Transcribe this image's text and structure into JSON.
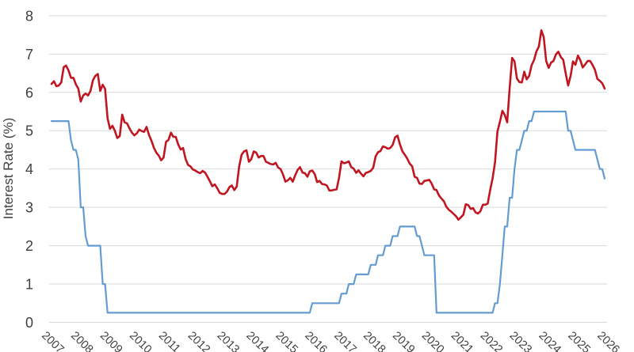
{
  "chart_data": {
    "type": "line",
    "title": "",
    "ylabel": "Interest Rate (%)",
    "xlabel": "",
    "ylim": [
      0,
      8
    ],
    "y_ticks": [
      0,
      1,
      2,
      3,
      4,
      5,
      6,
      7,
      8
    ],
    "x_tick_labels": [
      "2007",
      "2008",
      "2009",
      "2010",
      "2011",
      "2012",
      "2013",
      "2014",
      "2015",
      "2016",
      "2017",
      "2018",
      "2019",
      "2020",
      "2021",
      "2022",
      "2023",
      "2024",
      "2025",
      "2026"
    ],
    "x_frequency": "monthly",
    "x_range": "Jan 2007 - Dec 2025",
    "grid": "horizontal-light-gray",
    "legend_position": "none",
    "colors": {
      "grid": "#d9d9d9",
      "text": "#3f3f3f",
      "red_line": "#c01622",
      "blue_line": "#649cd2"
    },
    "series": [
      {
        "name": "red-line",
        "color": "#c01622",
        "stroke_width": 2.6,
        "values": [
          6.22,
          6.29,
          6.16,
          6.18,
          6.26,
          6.66,
          6.7,
          6.57,
          6.38,
          6.38,
          6.21,
          6.1,
          5.76,
          5.92,
          5.97,
          5.92,
          6.04,
          6.32,
          6.43,
          6.48,
          6.04,
          6.2,
          6.09,
          5.33,
          5.05,
          5.13,
          5.0,
          4.81,
          4.86,
          5.42,
          5.22,
          5.19,
          5.06,
          4.95,
          4.88,
          4.93,
          5.03,
          4.99,
          4.97,
          5.1,
          4.89,
          4.74,
          4.56,
          4.43,
          4.35,
          4.23,
          4.3,
          4.71,
          4.76,
          4.95,
          4.84,
          4.84,
          4.64,
          4.51,
          4.55,
          4.27,
          4.11,
          4.07,
          3.99,
          3.96,
          3.92,
          3.89,
          3.95,
          3.91,
          3.8,
          3.68,
          3.55,
          3.6,
          3.5,
          3.38,
          3.35,
          3.35,
          3.41,
          3.53,
          3.57,
          3.45,
          3.54,
          4.07,
          4.37,
          4.46,
          4.49,
          4.19,
          4.26,
          4.46,
          4.43,
          4.3,
          4.34,
          4.34,
          4.19,
          4.16,
          4.13,
          4.12,
          4.16,
          4.04,
          4.0,
          3.86,
          3.67,
          3.71,
          3.77,
          3.67,
          3.84,
          3.98,
          4.05,
          3.91,
          3.89,
          3.8,
          3.94,
          3.96,
          3.87,
          3.66,
          3.69,
          3.61,
          3.6,
          3.57,
          3.44,
          3.44,
          3.46,
          3.47,
          3.77,
          4.2,
          4.15,
          4.17,
          4.2,
          4.05,
          4.01,
          3.9,
          3.97,
          3.88,
          3.81,
          3.9,
          3.92,
          3.95,
          4.03,
          4.33,
          4.44,
          4.47,
          4.59,
          4.57,
          4.53,
          4.55,
          4.63,
          4.83,
          4.87,
          4.64,
          4.46,
          4.37,
          4.27,
          4.14,
          4.07,
          3.8,
          3.77,
          3.62,
          3.61,
          3.69,
          3.7,
          3.72,
          3.62,
          3.47,
          3.45,
          3.31,
          3.23,
          3.16,
          3.02,
          2.94,
          2.89,
          2.83,
          2.77,
          2.68,
          2.74,
          2.81,
          3.08,
          3.06,
          2.96,
          2.98,
          2.87,
          2.84,
          2.9,
          3.07,
          3.07,
          3.1,
          3.45,
          3.76,
          4.17,
          4.98,
          5.23,
          5.52,
          5.41,
          5.22,
          6.11,
          6.9,
          6.81,
          6.36,
          6.27,
          6.26,
          6.54,
          6.34,
          6.43,
          6.71,
          6.84,
          7.07,
          7.2,
          7.62,
          7.44,
          6.82,
          6.64,
          6.78,
          6.82,
          6.99,
          7.06,
          6.92,
          6.85,
          6.5,
          6.18,
          6.43,
          6.81,
          6.72,
          6.96,
          6.84,
          6.65,
          6.73,
          6.82,
          6.82,
          6.72,
          6.59,
          6.35,
          6.3,
          6.24,
          6.1
        ]
      },
      {
        "name": "blue-line",
        "color": "#649cd2",
        "stroke_width": 2.2,
        "values": [
          5.25,
          5.25,
          5.25,
          5.25,
          5.25,
          5.25,
          5.25,
          5.25,
          4.75,
          4.5,
          4.5,
          4.25,
          3.0,
          3.0,
          2.25,
          2.0,
          2.0,
          2.0,
          2.0,
          2.0,
          2.0,
          1.0,
          1.0,
          0.25,
          0.25,
          0.25,
          0.25,
          0.25,
          0.25,
          0.25,
          0.25,
          0.25,
          0.25,
          0.25,
          0.25,
          0.25,
          0.25,
          0.25,
          0.25,
          0.25,
          0.25,
          0.25,
          0.25,
          0.25,
          0.25,
          0.25,
          0.25,
          0.25,
          0.25,
          0.25,
          0.25,
          0.25,
          0.25,
          0.25,
          0.25,
          0.25,
          0.25,
          0.25,
          0.25,
          0.25,
          0.25,
          0.25,
          0.25,
          0.25,
          0.25,
          0.25,
          0.25,
          0.25,
          0.25,
          0.25,
          0.25,
          0.25,
          0.25,
          0.25,
          0.25,
          0.25,
          0.25,
          0.25,
          0.25,
          0.25,
          0.25,
          0.25,
          0.25,
          0.25,
          0.25,
          0.25,
          0.25,
          0.25,
          0.25,
          0.25,
          0.25,
          0.25,
          0.25,
          0.25,
          0.25,
          0.25,
          0.25,
          0.25,
          0.25,
          0.25,
          0.25,
          0.25,
          0.25,
          0.25,
          0.25,
          0.25,
          0.25,
          0.5,
          0.5,
          0.5,
          0.5,
          0.5,
          0.5,
          0.5,
          0.5,
          0.5,
          0.5,
          0.5,
          0.5,
          0.75,
          0.75,
          0.75,
          1.0,
          1.0,
          1.0,
          1.25,
          1.25,
          1.25,
          1.25,
          1.25,
          1.25,
          1.5,
          1.5,
          1.5,
          1.75,
          1.75,
          1.75,
          2.0,
          2.0,
          2.0,
          2.25,
          2.25,
          2.25,
          2.5,
          2.5,
          2.5,
          2.5,
          2.5,
          2.5,
          2.5,
          2.25,
          2.25,
          2.0,
          1.75,
          1.75,
          1.75,
          1.75,
          1.75,
          0.25,
          0.25,
          0.25,
          0.25,
          0.25,
          0.25,
          0.25,
          0.25,
          0.25,
          0.25,
          0.25,
          0.25,
          0.25,
          0.25,
          0.25,
          0.25,
          0.25,
          0.25,
          0.25,
          0.25,
          0.25,
          0.25,
          0.25,
          0.25,
          0.5,
          0.5,
          1.0,
          1.75,
          2.5,
          2.5,
          3.25,
          3.25,
          4.0,
          4.5,
          4.5,
          4.75,
          5.0,
          5.0,
          5.25,
          5.25,
          5.5,
          5.5,
          5.5,
          5.5,
          5.5,
          5.5,
          5.5,
          5.5,
          5.5,
          5.5,
          5.5,
          5.5,
          5.5,
          5.5,
          5.0,
          5.0,
          4.75,
          4.5,
          4.5,
          4.5,
          4.5,
          4.5,
          4.5,
          4.5,
          4.5,
          4.5,
          4.25,
          4.0,
          4.0,
          3.75
        ]
      }
    ]
  }
}
